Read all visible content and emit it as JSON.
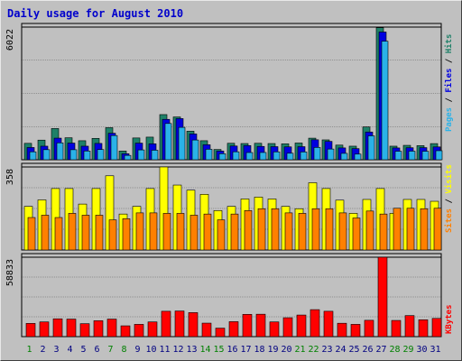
{
  "title": "Daily usage for August 2010",
  "colors": {
    "hits": "#1e8068",
    "files": "#0000e0",
    "pages": "#2ab2e8",
    "visits": "#ffff00",
    "sites": "#ff8000",
    "kbytes": "#ff0000",
    "weekday": "#000080",
    "weekend": "#008000"
  },
  "chart_data": [
    {
      "type": "bar",
      "panel": "hits-files-pages",
      "ylim": [
        0,
        6022
      ],
      "ymax_label": "6022",
      "right_label": [
        "Pages",
        " / ",
        "Files",
        " / ",
        "Hits"
      ],
      "categories": [
        "1",
        "2",
        "3",
        "4",
        "5",
        "6",
        "7",
        "8",
        "9",
        "10",
        "11",
        "12",
        "13",
        "14",
        "15",
        "16",
        "17",
        "18",
        "19",
        "20",
        "21",
        "22",
        "23",
        "24",
        "25",
        "26",
        "27",
        "28",
        "29",
        "30",
        "31"
      ],
      "series": [
        {
          "name": "Hits",
          "values": [
            745,
            891,
            1418,
            998,
            864,
            970,
            1457,
            395,
            989,
            1027,
            2050,
            1943,
            1296,
            864,
            466,
            748,
            736,
            748,
            736,
            723,
            760,
            980,
            902,
            665,
            616,
            1487,
            5994,
            616,
            654,
            640,
            733
          ]
        },
        {
          "name": "Files",
          "values": [
            556,
            616,
            981,
            757,
            616,
            741,
            1203,
            273,
            755,
            724,
            1834,
            1869,
            1171,
            681,
            395,
            624,
            644,
            605,
            595,
            585,
            594,
            908,
            834,
            537,
            506,
            1259,
            5798,
            536,
            546,
            551,
            582
          ]
        },
        {
          "name": "Pages",
          "values": [
            360,
            457,
            767,
            455,
            396,
            462,
            1099,
            197,
            446,
            432,
            1647,
            1470,
            896,
            476,
            274,
            361,
            328,
            330,
            358,
            296,
            354,
            558,
            486,
            290,
            256,
            1086,
            5380,
            386,
            390,
            385,
            410
          ]
        }
      ],
      "weekend_days": [
        "1",
        "7",
        "8",
        "14",
        "15",
        "21",
        "22",
        "28",
        "29"
      ]
    },
    {
      "type": "bar",
      "panel": "visits-sites",
      "ylim": [
        0,
        358
      ],
      "ymax_label": "358",
      "right_label": [
        "Sites",
        " / ",
        "Visits"
      ],
      "series": [
        {
          "name": "Visits",
          "values": [
            188,
            216,
            265,
            265,
            198,
            265,
            320,
            155,
            188,
            265,
            358,
            280,
            258,
            240,
            170,
            188,
            220,
            228,
            220,
            188,
            178,
            290,
            265,
            215,
            158,
            218,
            265,
            158,
            218,
            218,
            210
          ]
        },
        {
          "name": "Sites",
          "values": [
            140,
            150,
            140,
            158,
            150,
            150,
            130,
            135,
            160,
            160,
            158,
            158,
            150,
            155,
            130,
            155,
            170,
            178,
            178,
            160,
            158,
            178,
            178,
            160,
            138,
            168,
            155,
            180,
            180,
            178,
            180
          ]
        }
      ]
    },
    {
      "type": "bar",
      "panel": "kbytes",
      "ylim": [
        0,
        58833
      ],
      "ymax_label": "58833",
      "right_label": [
        "KBytes"
      ],
      "series": [
        {
          "name": "KBytes",
          "values": [
            9800,
            10900,
            13200,
            13000,
            9600,
            11800,
            13000,
            8000,
            9100,
            10900,
            18800,
            19000,
            17800,
            10000,
            6300,
            11100,
            16500,
            16600,
            10900,
            14000,
            16000,
            20000,
            18800,
            9900,
            9100,
            12100,
            58833,
            12000,
            15600,
            12500,
            13500
          ]
        }
      ]
    }
  ]
}
